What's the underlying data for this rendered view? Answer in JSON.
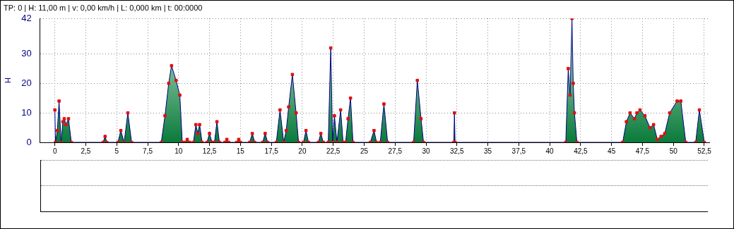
{
  "chart_data": {
    "type": "area",
    "title": "TP: 0 | H: 11,00 m | v: 0,00 km/h | L: 0,000 km | t: 00:0000",
    "ylabel": "H",
    "xlim": [
      -1.2,
      52.9
    ],
    "ylim": [
      0,
      42
    ],
    "xticks": [
      0,
      {
        "value": 2.5,
        "label": "2,5"
      },
      5,
      {
        "value": 7.5,
        "label": "7,5"
      },
      10,
      {
        "value": 12.5,
        "label": "12,5"
      },
      15,
      {
        "value": 17.5,
        "label": "17,5"
      },
      20,
      {
        "value": 22.5,
        "label": "22,5"
      },
      25,
      {
        "value": 27.5,
        "label": "27,5"
      },
      30,
      {
        "value": 32.5,
        "label": "32,5"
      },
      35,
      {
        "value": 37.5,
        "label": "37,5"
      },
      40,
      {
        "value": 42.5,
        "label": "42,5"
      },
      45,
      {
        "value": 47.5,
        "label": "47,5"
      },
      50,
      {
        "value": 52.5,
        "label": "52,5"
      }
    ],
    "yticks": [
      0,
      10,
      20,
      30,
      42
    ],
    "grid": true,
    "legend": false,
    "marker": "square",
    "line_style": "solid",
    "series": [
      {
        "color": "#e01010",
        "x": [
          0,
          0.05,
          0.2,
          0.34,
          0.5,
          0.65,
          0.76,
          0.9,
          1.1,
          1.33,
          3.9,
          4.06,
          4.2,
          5.1,
          5.33,
          5.6,
          5.9,
          6.2,
          8.6,
          8.9,
          9.2,
          9.43,
          9.8,
          10.1,
          10.3,
          10.5,
          10.7,
          10.9,
          11.2,
          11.4,
          11.55,
          11.7,
          11.9,
          12.3,
          12.5,
          12.7,
          12.9,
          13.1,
          13.3,
          13.75,
          13.9,
          14.05,
          14.7,
          14.86,
          15.0,
          15.75,
          15.96,
          16.15,
          16.8,
          17.0,
          17.2,
          17.9,
          18.2,
          18.5,
          18.7,
          18.9,
          19.2,
          19.5,
          19.7,
          20.1,
          20.3,
          20.5,
          21.3,
          21.5,
          21.7,
          22.1,
          22.3,
          22.45,
          22.6,
          22.8,
          23.1,
          23.3,
          23.5,
          23.7,
          23.9,
          24.1,
          25.5,
          25.8,
          26.0,
          26.3,
          26.6,
          26.9,
          29.0,
          29.3,
          29.6,
          29.8,
          32.25,
          32.3,
          32.35,
          41.3,
          41.5,
          41.65,
          41.8,
          41.9,
          42.0,
          42.2,
          45.9,
          46.2,
          46.5,
          46.85,
          47.05,
          47.3,
          47.7,
          48.1,
          48.4,
          48.7,
          49.0,
          49.3,
          49.7,
          50.3,
          50.6,
          51.0,
          51.8,
          52.1,
          52.5
        ],
        "values": [
          11,
          0,
          4,
          14,
          0,
          7,
          8,
          6,
          8,
          0,
          0,
          2,
          0,
          0,
          4,
          0,
          10,
          0,
          0,
          9,
          20,
          26,
          21,
          16,
          0,
          0,
          1,
          0,
          0,
          6,
          3,
          6,
          0,
          0,
          3,
          0,
          0,
          7,
          0,
          0,
          1,
          0,
          0,
          1,
          0,
          0,
          3,
          0,
          0,
          3,
          0,
          0,
          11,
          0,
          4,
          12,
          23,
          10,
          0,
          0,
          4,
          0,
          0,
          3,
          0,
          0,
          32,
          0,
          9,
          0,
          11,
          0,
          0,
          8,
          15,
          0,
          0,
          4,
          0,
          0,
          13,
          0,
          0,
          21,
          8,
          0,
          0,
          10,
          0,
          0,
          25,
          16,
          42,
          20,
          10,
          0,
          0,
          7,
          10,
          8,
          10,
          11,
          9,
          5,
          6,
          1,
          2,
          3,
          10,
          14,
          14,
          0,
          0,
          11,
          0
        ]
      }
    ]
  }
}
